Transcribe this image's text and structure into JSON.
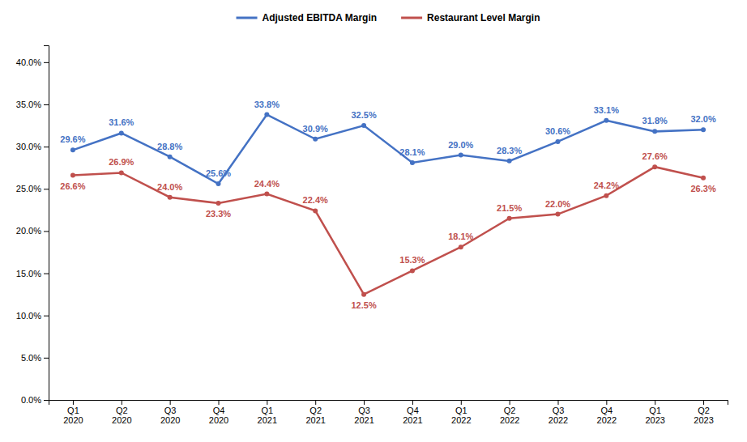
{
  "chart_data": {
    "type": "line",
    "categories": [
      "Q1\n2020",
      "Q2\n2020",
      "Q3\n2020",
      "Q4\n2020",
      "Q1\n2021",
      "Q2\n2021",
      "Q3\n2021",
      "Q4\n2021",
      "Q1\n2022",
      "Q2\n2022",
      "Q3\n2022",
      "Q4\n2022",
      "Q1\n2023",
      "Q2\n2023"
    ],
    "series": [
      {
        "name": "Adjusted EBITDA Margin",
        "color": "#4472C4",
        "values": [
          0.296,
          0.316,
          0.288,
          0.256,
          0.338,
          0.309,
          0.325,
          0.281,
          0.29,
          0.283,
          0.306,
          0.331,
          0.318,
          0.32
        ],
        "value_labels": [
          "29.6%",
          "31.6%",
          "28.8%",
          "25.6%",
          "33.8%",
          "30.9%",
          "32.5%",
          "28.1%",
          "29.0%",
          "28.3%",
          "30.6%",
          "33.1%",
          "31.8%",
          "32.0%"
        ]
      },
      {
        "name": "Restaurant Level Margin",
        "color": "#C0504D",
        "values": [
          0.266,
          0.269,
          0.24,
          0.233,
          0.244,
          0.224,
          0.125,
          0.153,
          0.181,
          0.215,
          0.22,
          0.242,
          0.276,
          0.263
        ],
        "value_labels": [
          "26.6%",
          "26.9%",
          "24.0%",
          "23.3%",
          "24.4%",
          "22.4%",
          "12.5%",
          "15.3%",
          "18.1%",
          "21.5%",
          "22.0%",
          "24.2%",
          "27.6%",
          "26.3%"
        ]
      }
    ],
    "ylim": [
      0.0,
      0.42
    ],
    "yticks": [
      {
        "value": 0.0,
        "label": "0.0%"
      },
      {
        "value": 0.05,
        "label": "5.0%"
      },
      {
        "value": 0.1,
        "label": "10.0%"
      },
      {
        "value": 0.15,
        "label": "15.0%"
      },
      {
        "value": 0.2,
        "label": "20.0%"
      },
      {
        "value": 0.25,
        "label": "25.0%"
      },
      {
        "value": 0.3,
        "label": "30.0%"
      },
      {
        "value": 0.35,
        "label": "35.0%"
      },
      {
        "value": 0.4,
        "label": "40.0%"
      }
    ],
    "grid": false,
    "legend": "top",
    "data_labels": true,
    "marker": "circle"
  }
}
